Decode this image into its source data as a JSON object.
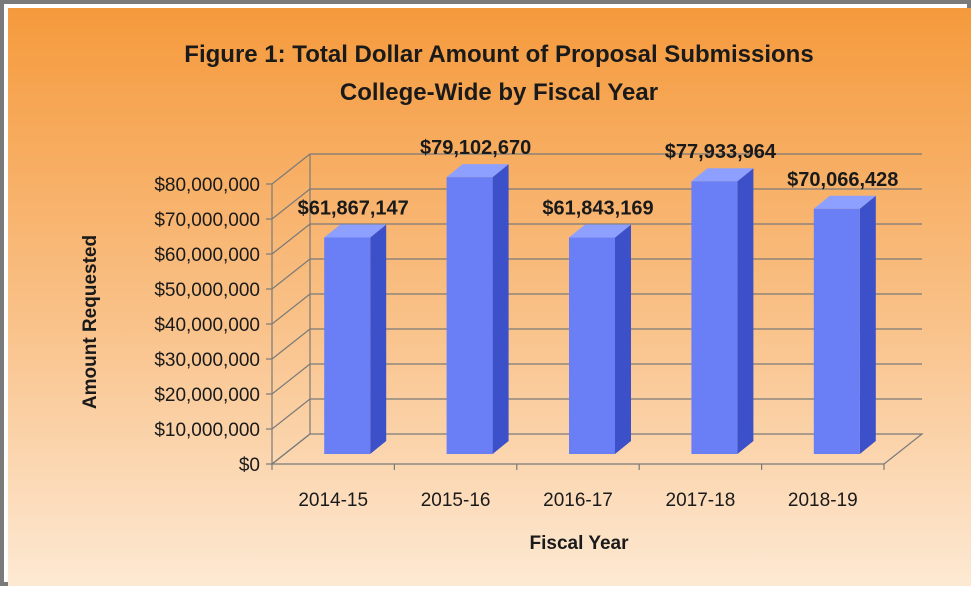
{
  "chart_data": {
    "type": "bar",
    "title": [
      "Figure 1: Total Dollar Amount of Proposal Submissions",
      "College-Wide by Fiscal Year"
    ],
    "xlabel": "Fiscal Year",
    "ylabel": "Amount  Requested",
    "categories": [
      "2014-15",
      "2015-16",
      "2016-17",
      "2017-18",
      "2018-19"
    ],
    "values": [
      61867147,
      79102670,
      61843169,
      77933964,
      70066428
    ],
    "data_labels": [
      "$61,867,147",
      "$79,102,670",
      "$61,843,169",
      "$77,933,964",
      "$70,066,428"
    ],
    "yticks": [
      "$0",
      "$10,000,000",
      "$20,000,000",
      "$30,000,000",
      "$40,000,000",
      "$50,000,000",
      "$60,000,000",
      "$70,000,000",
      "$80,000,000"
    ],
    "ylim": [
      0,
      80000000
    ],
    "grid": true,
    "legend": "none",
    "style": "3d-column",
    "colors": {
      "bar_front": "#6a7ff5",
      "bar_side": "#3c51c9",
      "bar_top": "#8ea0ff",
      "background_top": "#f59a3c",
      "background_bottom": "#fde9d3",
      "gridline": "#7a7a7a",
      "border": "#7a7a7a"
    }
  }
}
